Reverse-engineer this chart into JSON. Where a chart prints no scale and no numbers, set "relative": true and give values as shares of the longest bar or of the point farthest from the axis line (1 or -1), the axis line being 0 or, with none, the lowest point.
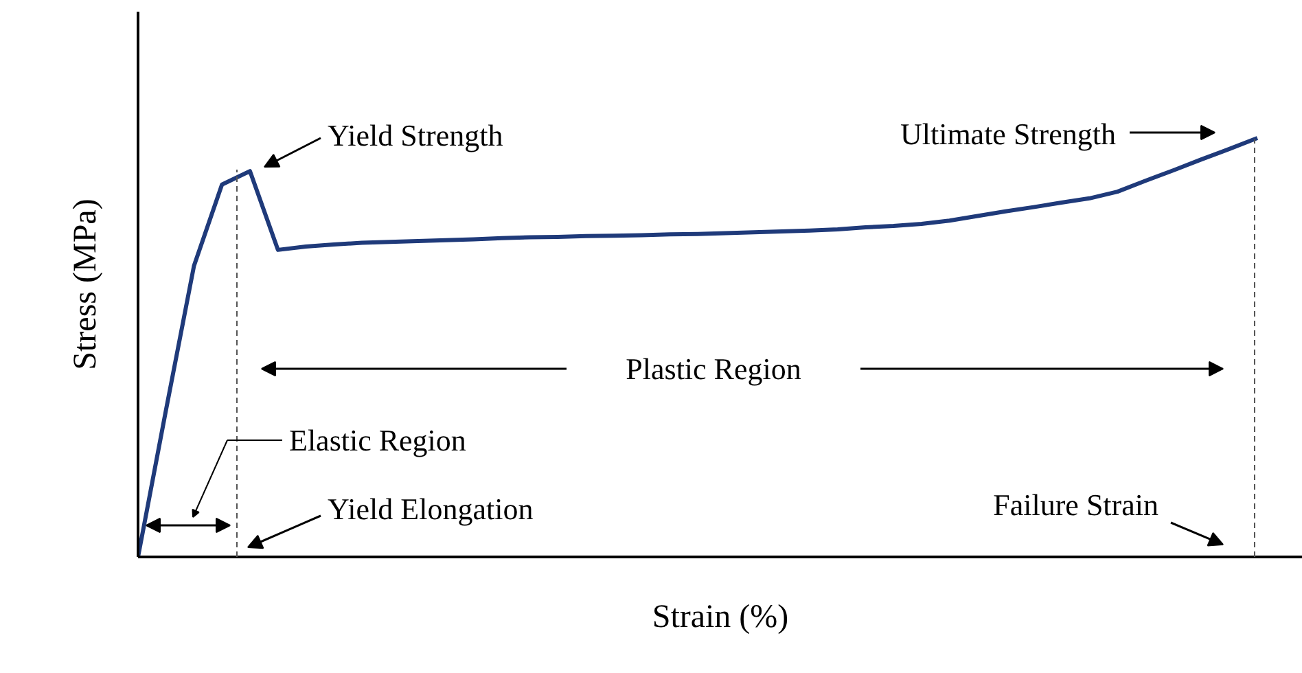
{
  "chart_data": {
    "type": "line",
    "relative": true,
    "xlabel": "Strain (%)",
    "ylabel": "Stress (MPa)",
    "color": "#1f3a7a",
    "grid": false,
    "categories": [
      null,
      null,
      null,
      null,
      null,
      null,
      null,
      null,
      null,
      null,
      null,
      null,
      null,
      null,
      null,
      null,
      null,
      null,
      null,
      null,
      null,
      null,
      null,
      null,
      null,
      null,
      null,
      null,
      null,
      null,
      null,
      null,
      null,
      null,
      null,
      null,
      null,
      null,
      null,
      null,
      null
    ],
    "values": [
      0,
      0.351,
      0.695,
      0.889,
      0.921,
      0.733,
      0.741,
      0.746,
      0.75,
      0.752,
      0.754,
      0.756,
      0.758,
      0.761,
      0.763,
      0.764,
      0.766,
      0.767,
      0.768,
      0.77,
      0.771,
      0.773,
      0.775,
      0.777,
      0.779,
      0.782,
      0.787,
      0.79,
      0.795,
      0.803,
      0.814,
      0.825,
      0.835,
      0.846,
      0.856,
      0.872,
      0.898,
      0.923,
      0.949,
      0.974,
      1.0
    ],
    "annotations": [
      "Yield Strength",
      "Ultimate Strength",
      "Plastic Region",
      "Elastic Region",
      "Yield Elongation",
      "Failure Strain"
    ]
  }
}
